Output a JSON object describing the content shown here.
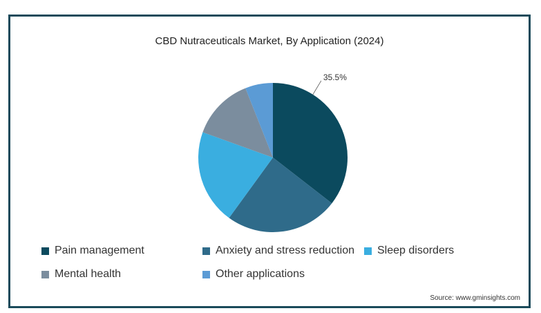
{
  "chart_data": {
    "type": "pie",
    "title": "CBD Nutraceuticals Market, By Application (2024)",
    "slices": [
      {
        "name": "Pain management",
        "value": 35.5,
        "color": "#0b4a5e"
      },
      {
        "name": "Anxiety and stress reduction",
        "value": 24.5,
        "color": "#2f6b8a"
      },
      {
        "name": "Sleep disorders",
        "value": 20.5,
        "color": "#3aaee0"
      },
      {
        "name": "Mental health",
        "value": 13.5,
        "color": "#7b8d9e"
      },
      {
        "name": "Other applications",
        "value": 6.0,
        "color": "#5b9bd5"
      }
    ],
    "data_labels": [
      {
        "slice": "Pain management",
        "text": "35.5%"
      }
    ],
    "legend_position": "bottom"
  },
  "source": "Source: www.gminsights.com"
}
